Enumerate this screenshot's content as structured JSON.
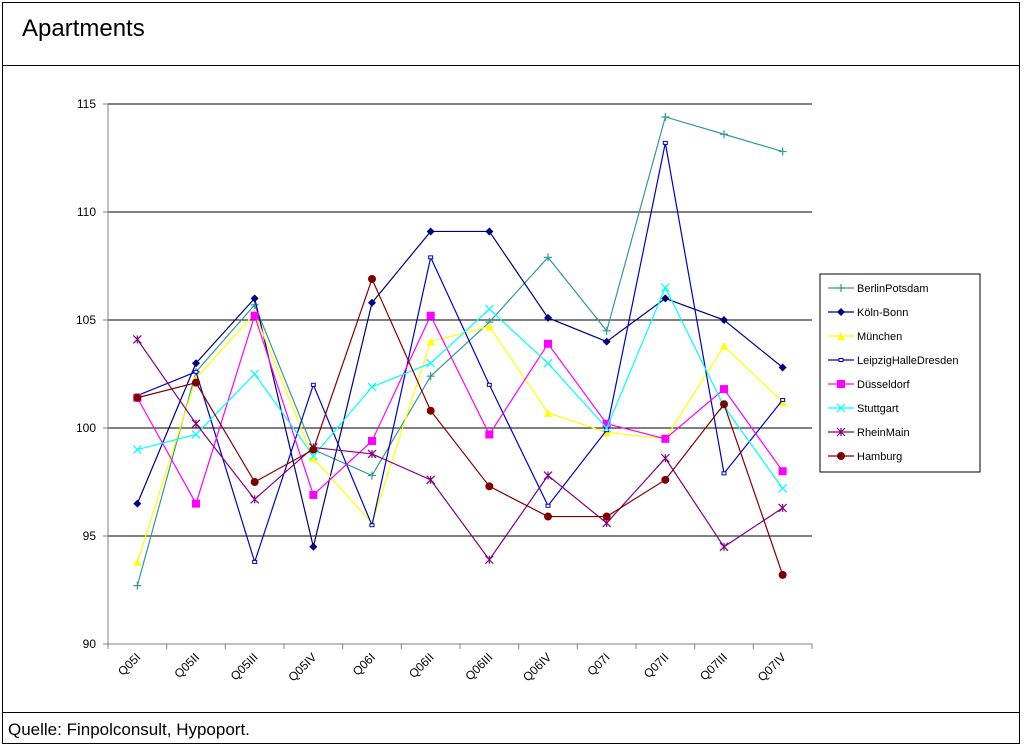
{
  "title": "Apartments",
  "source": "Quelle: Finpolconsult, Hypoport.",
  "chart_data": {
    "type": "line",
    "title": "Apartments",
    "categories": [
      "Q05I",
      "Q05II",
      "Q05III",
      "Q05IV",
      "Q06I",
      "Q06II",
      "Q06III",
      "Q06IV",
      "Q07I",
      "Q07II",
      "Q07III",
      "Q07IV"
    ],
    "ylim": [
      90,
      115
    ],
    "yticks": [
      90,
      95,
      100,
      105,
      110,
      115
    ],
    "grid": "horizontal",
    "legend_position": "right",
    "series": [
      {
        "name": "BerlinPotsdam",
        "color": "#339999",
        "marker": "plus",
        "values": [
          92.7,
          102.6,
          105.7,
          99.0,
          97.8,
          102.4,
          104.9,
          107.9,
          104.5,
          114.4,
          113.6,
          112.8
        ]
      },
      {
        "name": "Köln-Bonn",
        "color": "#000080",
        "marker": "diamond",
        "values": [
          96.5,
          103.0,
          106.0,
          94.5,
          105.8,
          109.1,
          109.1,
          105.1,
          104.0,
          106.0,
          105.0,
          102.8
        ]
      },
      {
        "name": "München",
        "color": "#ffff00",
        "marker": "triangle",
        "values": [
          93.8,
          102.3,
          105.3,
          98.6,
          95.6,
          104.0,
          104.7,
          100.7,
          99.8,
          99.5,
          103.8,
          101.2
        ]
      },
      {
        "name": "LeipzigHalleDresden",
        "color": "#0000cc",
        "marker": "dash",
        "values": [
          101.5,
          102.6,
          93.8,
          102.0,
          95.5,
          107.9,
          102.0,
          96.4,
          99.9,
          113.2,
          97.9,
          101.3
        ]
      },
      {
        "name": "Düsseldorf",
        "color": "#ff00ff",
        "marker": "square",
        "values": [
          101.4,
          96.5,
          105.2,
          96.9,
          99.4,
          105.2,
          99.7,
          103.9,
          100.2,
          99.5,
          101.8,
          98.0
        ]
      },
      {
        "name": "Stuttgart",
        "color": "#00ffff",
        "marker": "x",
        "values": [
          99.0,
          99.7,
          102.5,
          98.7,
          101.9,
          103.0,
          105.5,
          103.0,
          100.0,
          106.5,
          101.0,
          97.2
        ]
      },
      {
        "name": "RheinMain",
        "color": "#800080",
        "marker": "star",
        "values": [
          104.1,
          100.2,
          96.7,
          99.1,
          98.8,
          97.6,
          93.9,
          97.8,
          95.6,
          98.6,
          94.5,
          96.3
        ]
      },
      {
        "name": "Hamburg",
        "color": "#800000",
        "marker": "circle",
        "values": [
          101.4,
          102.1,
          97.5,
          99.0,
          106.9,
          100.8,
          97.3,
          95.9,
          95.9,
          97.6,
          101.1,
          93.2
        ]
      }
    ]
  }
}
